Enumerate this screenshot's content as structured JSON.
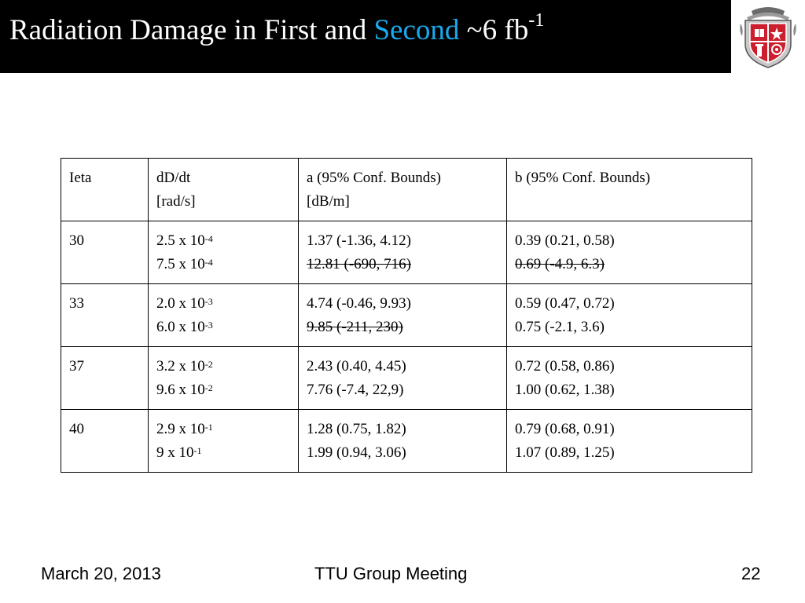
{
  "title": {
    "part1": "Radiation Damage in First and ",
    "accent": "Second",
    "part2": " ~6 fb",
    "superscript": "-1",
    "accent_color": "#1aa9ec"
  },
  "logo": {
    "icon": "university-shield-icon"
  },
  "table": {
    "headers": [
      {
        "lines": [
          "Ieta"
        ]
      },
      {
        "lines": [
          "dD/dt",
          "[rad/s]"
        ]
      },
      {
        "lines": [
          "a (95% Conf. Bounds)",
          "[dB/m]"
        ]
      },
      {
        "lines": [
          "b (95% Conf. Bounds)"
        ]
      }
    ],
    "rows": [
      {
        "ieta": "30",
        "dose": [
          {
            "base": "2.5 x 10",
            "exp": "-4"
          },
          {
            "base": "7.5 x 10",
            "exp": "-4"
          }
        ],
        "a": [
          {
            "text": "1.37 (-1.36, 4.12)",
            "struck": false
          },
          {
            "text": "12.81 (-690, 716)",
            "struck": true
          }
        ],
        "b": [
          {
            "text": "0.39 (0.21, 0.58)",
            "struck": false
          },
          {
            "text": "0.69 (-4.9, 6.3)",
            "struck": true
          }
        ]
      },
      {
        "ieta": "33",
        "dose": [
          {
            "base": "2.0 x 10",
            "exp": "-3"
          },
          {
            "base": "6.0 x 10",
            "exp": "-3"
          }
        ],
        "a": [
          {
            "text": "4.74 (-0.46, 9.93)",
            "struck": false
          },
          {
            "text": "9.85 (-211, 230)",
            "struck": true
          }
        ],
        "b": [
          {
            "text": "0.59 (0.47, 0.72)",
            "struck": false
          },
          {
            "text": "0.75 (-2.1, 3.6)",
            "struck": false
          }
        ]
      },
      {
        "ieta": "37",
        "dose": [
          {
            "base": "3.2 x 10",
            "exp": "-2"
          },
          {
            "base": "9.6 x 10",
            "exp": "-2"
          }
        ],
        "a": [
          {
            "text": "2.43 (0.40, 4.45)",
            "struck": false
          },
          {
            "text": "7.76 (-7.4, 22,9)",
            "struck": false
          }
        ],
        "b": [
          {
            "text": "0.72 (0.58, 0.86)",
            "struck": false
          },
          {
            "text": "1.00 (0.62, 1.38)",
            "struck": false
          }
        ]
      },
      {
        "ieta": "40",
        "dose": [
          {
            "base": "2.9 x 10",
            "exp": "-1"
          },
          {
            "base": "9 x 10",
            "exp": "-1"
          }
        ],
        "a": [
          {
            "text": "1.28 (0.75, 1.82)",
            "struck": false
          },
          {
            "text": "1.99 (0.94, 3.06)",
            "struck": false
          }
        ],
        "b": [
          {
            "text": "0.79 (0.68, 0.91)",
            "struck": false
          },
          {
            "text": "1.07 (0.89, 1.25)",
            "struck": false
          }
        ]
      }
    ]
  },
  "footer": {
    "date": "March 20, 2013",
    "center": "TTU Group Meeting",
    "page": "22"
  }
}
